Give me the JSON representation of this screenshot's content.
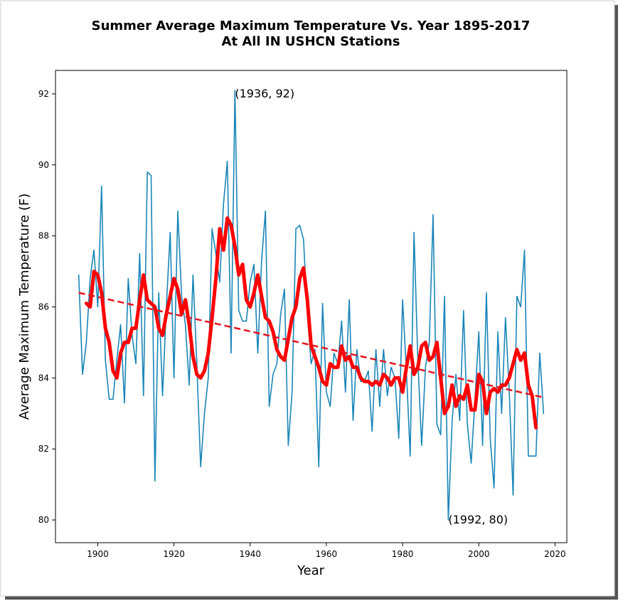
{
  "chart_data": {
    "type": "line",
    "title": "Summer Average Maximum Temperature Vs. Year 1895-2017",
    "subtitle": "At All IN USHCN Stations",
    "x_label": "Year",
    "y_label": "Average Maximum Temperature (F)",
    "xlim": [
      1888.9,
      2023.1
    ],
    "ylim": [
      79.36,
      92.66
    ],
    "xticks": [
      1900,
      1920,
      1940,
      1960,
      1980,
      2000,
      2020
    ],
    "yticks": [
      80,
      82,
      84,
      86,
      88,
      90,
      92
    ],
    "series": [
      {
        "color": "#1a86b8",
        "style": "solid",
        "width": 1.6,
        "x": [
          1895,
          1896,
          1897,
          1898,
          1899,
          1900,
          1901,
          1902,
          1903,
          1904,
          1905,
          1906,
          1907,
          1908,
          1909,
          1910,
          1911,
          1912,
          1913,
          1914,
          1915,
          1916,
          1917,
          1918,
          1919,
          1920,
          1921,
          1922,
          1923,
          1924,
          1925,
          1926,
          1927,
          1928,
          1929,
          1930,
          1931,
          1932,
          1933,
          1934,
          1935,
          1936,
          1937,
          1938,
          1939,
          1940,
          1941,
          1942,
          1943,
          1944,
          1945,
          1946,
          1947,
          1948,
          1949,
          1950,
          1951,
          1952,
          1953,
          1954,
          1955,
          1956,
          1957,
          1958,
          1959,
          1960,
          1961,
          1962,
          1963,
          1964,
          1965,
          1966,
          1967,
          1968,
          1969,
          1970,
          1971,
          1972,
          1973,
          1974,
          1975,
          1976,
          1977,
          1978,
          1979,
          1980,
          1981,
          1982,
          1983,
          1984,
          1985,
          1986,
          1987,
          1988,
          1989,
          1990,
          1991,
          1992,
          1993,
          1994,
          1995,
          1996,
          1997,
          1998,
          1999,
          2000,
          2001,
          2002,
          2003,
          2004,
          2005,
          2006,
          2007,
          2008,
          2009,
          2010,
          2011,
          2012,
          2013,
          2014,
          2015,
          2016,
          2017
        ],
        "values": [
          86.9,
          84.1,
          85.0,
          86.8,
          87.6,
          86.0,
          89.4,
          84.5,
          83.4,
          83.4,
          84.5,
          85.5,
          83.3,
          86.8,
          85.2,
          84.4,
          87.5,
          83.5,
          89.8,
          89.7,
          81.1,
          86.4,
          83.5,
          86.0,
          88.1,
          84.0,
          88.7,
          86.3,
          85.5,
          83.8,
          86.9,
          84.4,
          81.5,
          83.0,
          84.0,
          88.2,
          87.5,
          86.7,
          88.9,
          90.1,
          84.7,
          92.1,
          85.9,
          85.6,
          85.6,
          86.7,
          87.2,
          84.7,
          87.3,
          88.7,
          83.2,
          84.1,
          84.4,
          85.8,
          86.5,
          82.1,
          83.6,
          88.2,
          88.3,
          87.9,
          85.8,
          84.4,
          84.8,
          81.5,
          86.1,
          83.6,
          83.2,
          84.7,
          84.4,
          85.6,
          83.6,
          86.2,
          82.8,
          84.8,
          83.9,
          83.9,
          84.2,
          82.5,
          84.8,
          83.2,
          84.8,
          83.5,
          84.3,
          84.0,
          82.3,
          86.2,
          84.2,
          81.8,
          88.1,
          84.5,
          82.1,
          84.3,
          85.0,
          88.6,
          82.7,
          82.4,
          86.3,
          80.0,
          82.8,
          84.1,
          82.8,
          85.9,
          82.7,
          81.6,
          83.4,
          85.3,
          82.1,
          86.4,
          82.3,
          80.9,
          85.3,
          83.0,
          85.7,
          83.6,
          80.7,
          86.3,
          86.0,
          87.6,
          81.8,
          81.8,
          81.8,
          84.7,
          83.0
        ]
      },
      {
        "color": "#ff0000",
        "style": "solid",
        "width": 5,
        "x": [
          1897,
          1898,
          1899,
          1900,
          1901,
          1902,
          1903,
          1904,
          1905,
          1906,
          1907,
          1908,
          1909,
          1910,
          1911,
          1912,
          1913,
          1914,
          1915,
          1916,
          1917,
          1918,
          1919,
          1920,
          1921,
          1922,
          1923,
          1924,
          1925,
          1926,
          1927,
          1928,
          1929,
          1930,
          1931,
          1932,
          1933,
          1934,
          1935,
          1936,
          1937,
          1938,
          1939,
          1940,
          1941,
          1942,
          1943,
          1944,
          1945,
          1946,
          1947,
          1948,
          1949,
          1950,
          1951,
          1952,
          1953,
          1954,
          1955,
          1956,
          1957,
          1958,
          1959,
          1960,
          1961,
          1962,
          1963,
          1964,
          1965,
          1966,
          1967,
          1968,
          1969,
          1970,
          1971,
          1972,
          1973,
          1974,
          1975,
          1976,
          1977,
          1978,
          1979,
          1980,
          1981,
          1982,
          1983,
          1984,
          1985,
          1986,
          1987,
          1988,
          1989,
          1990,
          1991,
          1992,
          1993,
          1994,
          1995,
          1996,
          1997,
          1998,
          1999,
          2000,
          2001,
          2002,
          2003,
          2004,
          2005,
          2006,
          2007,
          2008,
          2009,
          2010,
          2011,
          2012,
          2013,
          2014,
          2015
        ],
        "values": [
          86.1,
          86.0,
          87.0,
          86.9,
          86.4,
          85.4,
          85.0,
          84.2,
          84.0,
          84.7,
          85.0,
          85.0,
          85.4,
          85.4,
          86.2,
          86.9,
          86.2,
          86.1,
          86.0,
          85.4,
          85.2,
          85.8,
          86.3,
          86.8,
          86.5,
          85.8,
          86.2,
          85.5,
          84.6,
          84.1,
          84.0,
          84.2,
          84.7,
          85.7,
          86.8,
          88.2,
          87.6,
          88.5,
          88.3,
          87.7,
          86.9,
          87.2,
          86.2,
          86.0,
          86.4,
          86.9,
          86.3,
          85.7,
          85.6,
          85.3,
          84.8,
          84.6,
          84.5,
          85.1,
          85.7,
          86.0,
          86.8,
          87.1,
          86.2,
          84.9,
          84.6,
          84.3,
          83.9,
          83.8,
          84.4,
          84.3,
          84.3,
          84.9,
          84.5,
          84.6,
          84.3,
          84.3,
          84.0,
          83.9,
          83.9,
          83.8,
          83.9,
          83.8,
          84.1,
          84.0,
          83.8,
          84.0,
          84.0,
          83.6,
          84.3,
          84.9,
          84.1,
          84.3,
          84.9,
          85.0,
          84.5,
          84.6,
          85.0,
          84.0,
          83.0,
          83.2,
          83.8,
          83.2,
          83.5,
          83.4,
          83.8,
          83.1,
          83.1,
          84.1,
          83.9,
          83.0,
          83.6,
          83.7,
          83.6,
          83.8,
          83.8,
          84.0,
          84.4,
          84.8,
          84.5,
          84.7,
          83.8,
          83.5,
          82.6
        ]
      },
      {
        "color": "#e8141e",
        "style": "dashed",
        "width": 2.5,
        "x": [
          1895,
          2017
        ],
        "values": [
          86.4,
          83.45
        ]
      }
    ],
    "annotations": [
      {
        "text": "(1936, 92)",
        "x": 1936,
        "y": 92
      },
      {
        "text": "(1992, 80)",
        "x": 1992,
        "y": 80
      }
    ]
  }
}
